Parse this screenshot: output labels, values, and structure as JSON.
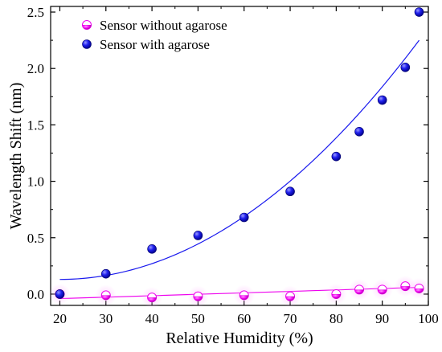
{
  "chart_data": {
    "type": "scatter",
    "xlabel": "Relative Humidity (%)",
    "ylabel": "Wavelength Shift (nm)",
    "xlim": [
      18,
      100
    ],
    "ylim": [
      -0.1,
      2.55
    ],
    "x_ticks": [
      20,
      30,
      40,
      50,
      60,
      70,
      80,
      90,
      100
    ],
    "y_ticks": [
      0.0,
      0.5,
      1.0,
      1.5,
      2.0,
      2.5
    ],
    "x_tick_labels": [
      "20",
      "30",
      "40",
      "50",
      "60",
      "70",
      "80",
      "90",
      "100"
    ],
    "y_tick_labels": [
      "0.0",
      "0.5",
      "1.0",
      "1.5",
      "2.0",
      "2.5"
    ],
    "grid": false,
    "legend_position": "top-left",
    "series": [
      {
        "name": "Sensor without agarose",
        "color": "#ee00ee",
        "marker": "half-filled circle",
        "x": [
          20,
          30,
          40,
          50,
          60,
          70,
          80,
          85,
          90,
          95,
          98
        ],
        "y": [
          0.0,
          -0.01,
          -0.03,
          -0.02,
          -0.01,
          -0.02,
          0.0,
          0.04,
          0.04,
          0.07,
          0.05
        ],
        "fit": {
          "type": "linear",
          "from": [
            20,
            -0.04
          ],
          "to": [
            98,
            0.06
          ]
        }
      },
      {
        "name": "Sensor with agarose",
        "color": "#1a1aee",
        "marker": "filled circle",
        "x": [
          20,
          30,
          40,
          50,
          60,
          70,
          80,
          85,
          90,
          95,
          98
        ],
        "y": [
          0.0,
          0.18,
          0.4,
          0.52,
          0.68,
          0.91,
          1.22,
          1.44,
          1.72,
          2.01,
          2.5
        ],
        "fit": {
          "type": "quadratic",
          "points": [
            [
              20,
              0.13
            ],
            [
              40,
              0.27
            ],
            [
              98,
              2.25
            ]
          ]
        }
      }
    ]
  }
}
